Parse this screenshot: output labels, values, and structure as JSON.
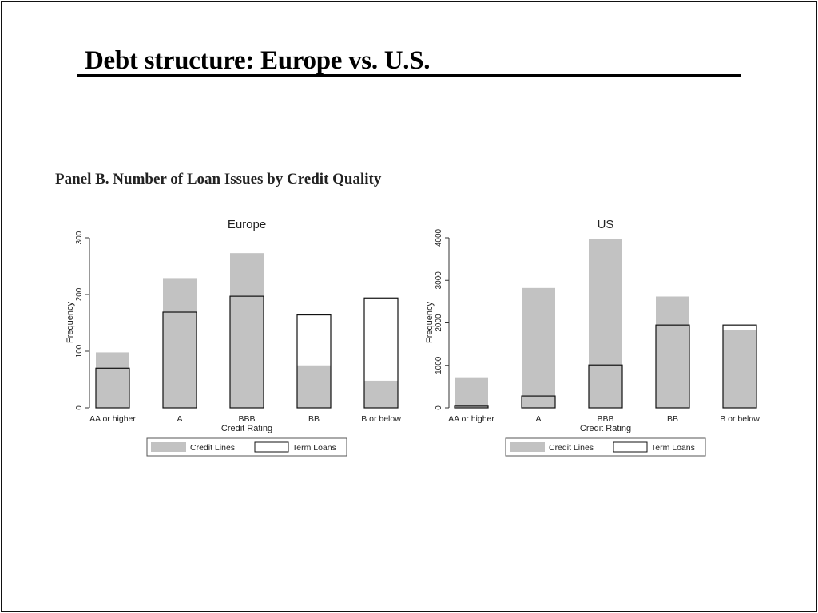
{
  "slide": {
    "title": "Debt structure: Europe vs. U.S.",
    "panel_title": "Panel B. Number of Loan Issues by Credit Quality"
  },
  "colors": {
    "credit_lines": "#c2c2c2",
    "term_loans_stroke": "#111111",
    "axis": "#333333"
  },
  "chart_data": [
    {
      "type": "bar",
      "title": "Europe",
      "xlabel": "Credit Rating",
      "ylabel": "Frequency",
      "categories": [
        "AA or higher",
        "A",
        "BBB",
        "BB",
        "B or below"
      ],
      "ylim": [
        0,
        300
      ],
      "yticks": [
        0,
        100,
        200,
        300
      ],
      "series": [
        {
          "name": "Credit Lines",
          "style": "filled",
          "values": [
            98,
            229,
            273,
            75,
            48
          ]
        },
        {
          "name": "Term Loans",
          "style": "outline",
          "values": [
            70,
            169,
            197,
            164,
            194
          ]
        }
      ],
      "legend": {
        "position": "bottom",
        "entries": [
          "Credit Lines",
          "Term Loans"
        ]
      }
    },
    {
      "type": "bar",
      "title": "US",
      "xlabel": "Credit Rating",
      "ylabel": "Frequency",
      "categories": [
        "AA or higher",
        "A",
        "BBB",
        "BB",
        "B or below"
      ],
      "ylim": [
        0,
        4000
      ],
      "yticks": [
        0,
        1000,
        2000,
        3000,
        4000
      ],
      "series": [
        {
          "name": "Credit Lines",
          "style": "filled",
          "values": [
            720,
            2820,
            3980,
            2620,
            1840
          ]
        },
        {
          "name": "Term Loans",
          "style": "outline",
          "values": [
            40,
            280,
            1010,
            1950,
            1950
          ]
        }
      ],
      "legend": {
        "position": "bottom",
        "entries": [
          "Credit Lines",
          "Term Loans"
        ]
      }
    }
  ]
}
